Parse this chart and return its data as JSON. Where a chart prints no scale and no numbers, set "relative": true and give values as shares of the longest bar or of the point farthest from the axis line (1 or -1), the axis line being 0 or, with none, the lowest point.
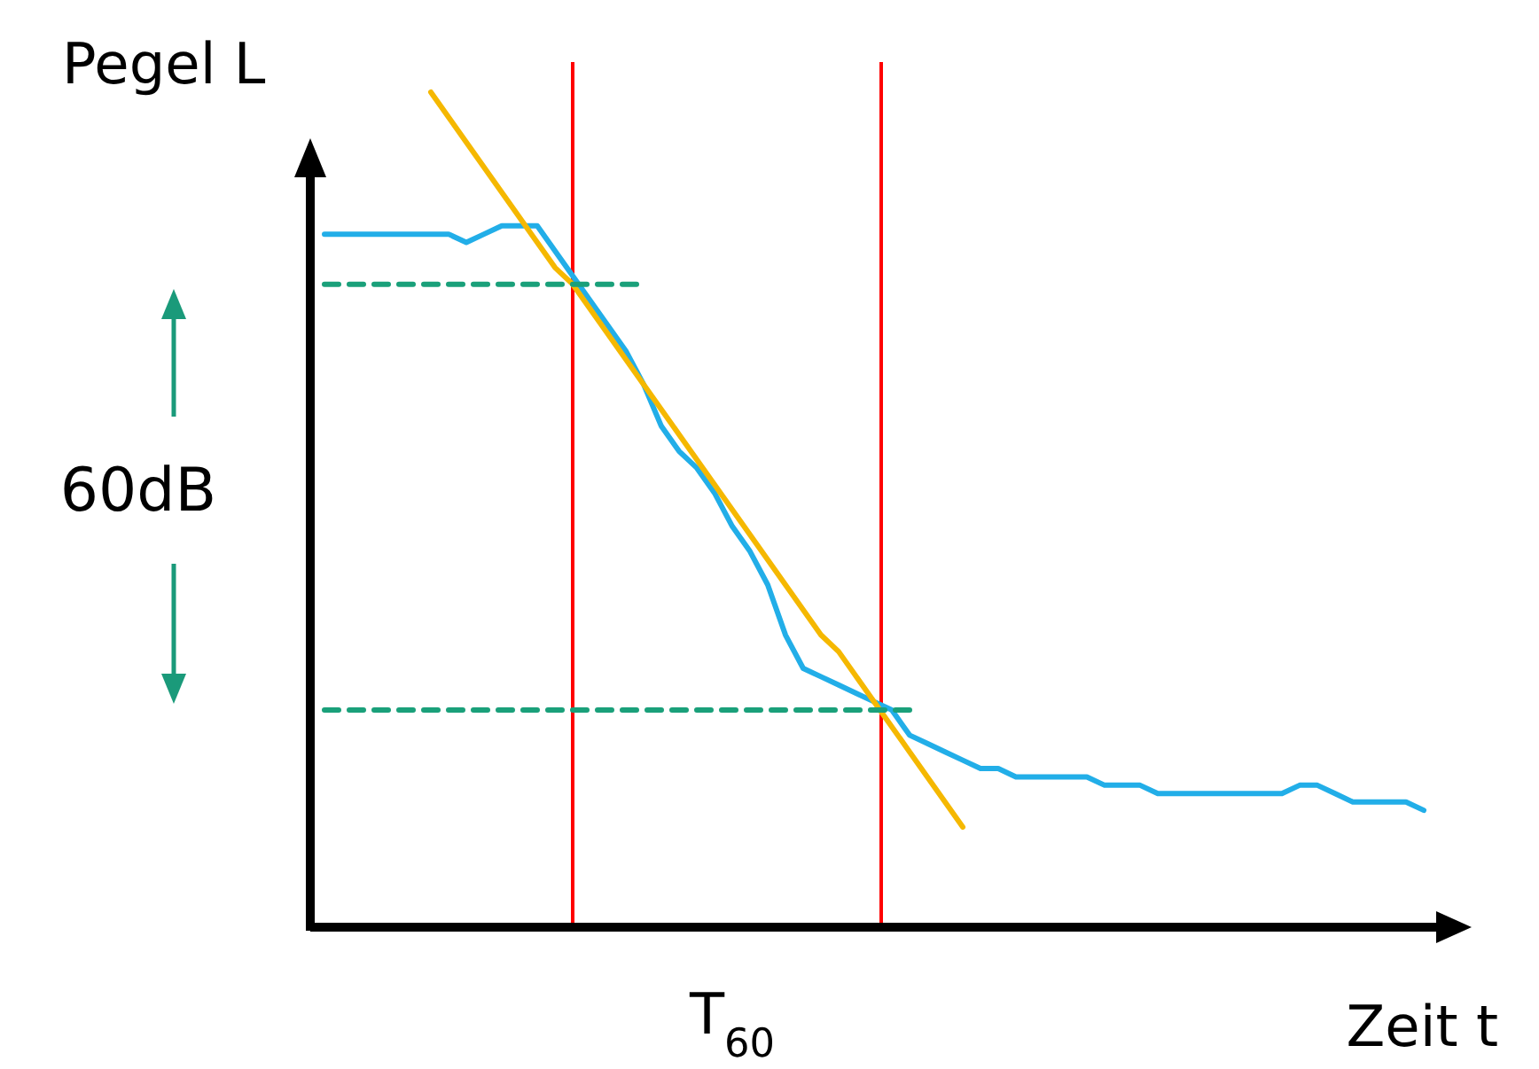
{
  "chart_data": {
    "type": "line",
    "relative": true,
    "xlabel": "Zeit t",
    "ylabel": "Pegel L",
    "categories": [
      null,
      null,
      null,
      null,
      null,
      null,
      null,
      null,
      null,
      null,
      null,
      null,
      null,
      null,
      null,
      null,
      null,
      null,
      null,
      null,
      null,
      null,
      null,
      null,
      null,
      null,
      null,
      null,
      null,
      null,
      null,
      null,
      null,
      null,
      null,
      null,
      null,
      null,
      null,
      null,
      null,
      null,
      null,
      null,
      null,
      null,
      null,
      null,
      null,
      null,
      null,
      null,
      null,
      null,
      null,
      null,
      null,
      null,
      null,
      null,
      null,
      null,
      null
    ],
    "series": [
      {
        "color": "#22aee8",
        "values": [
          0.83,
          0.83,
          0.83,
          0.83,
          0.83,
          0.83,
          0.83,
          0.83,
          0.82,
          0.83,
          0.84,
          0.84,
          0.84,
          0.81,
          0.78,
          0.75,
          0.72,
          0.69,
          0.65,
          0.6,
          0.57,
          0.55,
          0.52,
          0.48,
          0.45,
          0.41,
          0.35,
          0.31,
          0.3,
          0.29,
          0.28,
          0.27,
          0.26,
          0.23,
          0.22,
          0.21,
          0.2,
          0.19,
          0.19,
          0.18,
          0.18,
          0.18,
          0.18,
          0.18,
          0.17,
          0.17,
          0.17,
          0.16,
          0.16,
          0.16,
          0.16,
          0.16,
          0.16,
          0.16,
          0.16,
          0.17,
          0.17,
          0.16,
          0.15,
          0.15,
          0.15,
          0.15,
          0.14
        ]
      },
      {
        "color": "#f5b800",
        "values": [
          null,
          null,
          null,
          null,
          null,
          null,
          1.0,
          0.97,
          0.94,
          0.91,
          0.88,
          0.85,
          0.82,
          0.79,
          0.77,
          0.74,
          0.71,
          0.68,
          0.65,
          0.62,
          0.59,
          0.56,
          0.53,
          0.5,
          0.47,
          0.44,
          0.41,
          0.38,
          0.35,
          0.33,
          0.3,
          0.27,
          0.24,
          0.21,
          0.18,
          0.15,
          0.12,
          null,
          null,
          null,
          null,
          null,
          null,
          null,
          null,
          null,
          null,
          null,
          null,
          null,
          null,
          null,
          null,
          null,
          null,
          null,
          null,
          null,
          null,
          null,
          null,
          null,
          null
        ]
      },
      {
        "color": "#1aa07a",
        "line_style": "dashed",
        "values": [
          0.77,
          0.77,
          0.77,
          0.77,
          0.77,
          0.77,
          0.77,
          0.77,
          0.77,
          0.77,
          0.77,
          0.77,
          0.77,
          0.77,
          0.77,
          0.77,
          0.77,
          0.77,
          0.77,
          null,
          null,
          null,
          null,
          null,
          null,
          null,
          null,
          null,
          null,
          null,
          null,
          null,
          null,
          null,
          null,
          null,
          null,
          null,
          null,
          null,
          null,
          null,
          null,
          null,
          null,
          null,
          null,
          null,
          null,
          null,
          null,
          null,
          null,
          null,
          null,
          null,
          null,
          null,
          null,
          null,
          null,
          null,
          null
        ]
      },
      {
        "color": "#1aa07a",
        "line_style": "dashed",
        "values": [
          0.26,
          0.26,
          0.26,
          0.26,
          0.26,
          0.26,
          0.26,
          0.26,
          0.26,
          0.26,
          0.26,
          0.26,
          0.26,
          0.26,
          0.26,
          0.26,
          0.26,
          0.26,
          0.26,
          0.26,
          0.26,
          0.26,
          0.26,
          0.26,
          0.26,
          0.26,
          0.26,
          0.26,
          0.26,
          0.26,
          0.26,
          0.26,
          0.26,
          0.26,
          null,
          null,
          null,
          null,
          null,
          null,
          null,
          null,
          null,
          null,
          null,
          null,
          null,
          null,
          null,
          null,
          null,
          null,
          null,
          null,
          null,
          null,
          null,
          null,
          null,
          null,
          null,
          null,
          null
        ]
      }
    ],
    "annotations": [
      "60dB",
      "T$_{60}$"
    ]
  }
}
